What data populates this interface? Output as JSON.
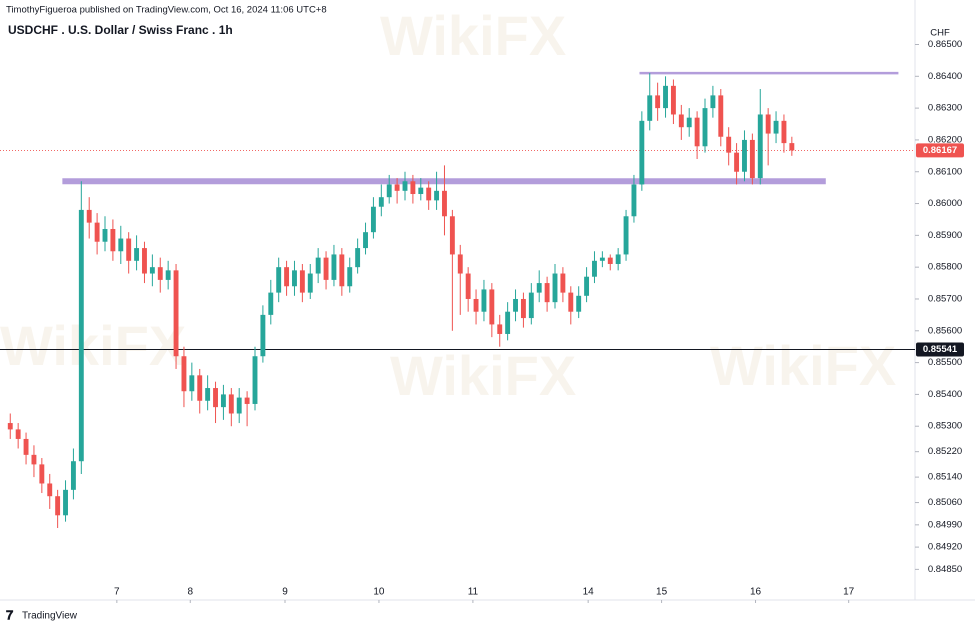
{
  "header": {
    "byline": "TimothyFigueroa published on TradingView.com, Oct 16, 2024 11:06 UTC+8",
    "footer": "TradingView",
    "watermark": "WikiFX"
  },
  "chart_data": {
    "type": "candlestick",
    "title": "USDCHF . U.S. Dollar / Swiss Franc . 1h",
    "y_unit": "CHF",
    "up_color": "#26a69a",
    "down_color": "#ef5350",
    "xlim": [
      -1.3,
      114.6
    ],
    "ylim": [
      0.8476,
      0.86577
    ],
    "xticks": [
      {
        "value": 13.5,
        "label": "7"
      },
      {
        "value": 22.8,
        "label": "8"
      },
      {
        "value": 34.8,
        "label": "9"
      },
      {
        "value": 46.7,
        "label": "10"
      },
      {
        "value": 58.6,
        "label": "11"
      },
      {
        "value": 73.2,
        "label": "14"
      },
      {
        "value": 82.5,
        "label": "15"
      },
      {
        "value": 94.4,
        "label": "16"
      },
      {
        "value": 106.2,
        "label": "17"
      }
    ],
    "yticks": [
      {
        "value": 0.865,
        "label": "0.86500"
      },
      {
        "value": 0.864,
        "label": "0.86400"
      },
      {
        "value": 0.863,
        "label": "0.86300"
      },
      {
        "value": 0.862,
        "label": "0.86200"
      },
      {
        "value": 0.861,
        "label": "0.86100"
      },
      {
        "value": 0.86,
        "label": "0.86000"
      },
      {
        "value": 0.859,
        "label": "0.85900"
      },
      {
        "value": 0.858,
        "label": "0.85800"
      },
      {
        "value": 0.857,
        "label": "0.85700"
      },
      {
        "value": 0.856,
        "label": "0.85600"
      },
      {
        "value": 0.855,
        "label": "0.85500"
      },
      {
        "value": 0.854,
        "label": "0.85400"
      },
      {
        "value": 0.853,
        "label": "0.85300"
      },
      {
        "value": 0.8522,
        "label": "0.85220"
      },
      {
        "value": 0.8514,
        "label": "0.85140"
      },
      {
        "value": 0.8506,
        "label": "0.85060"
      },
      {
        "value": 0.8499,
        "label": "0.84990"
      },
      {
        "value": 0.8492,
        "label": "0.84920"
      },
      {
        "value": 0.8485,
        "label": "0.84850"
      }
    ],
    "open": [
      0.8531,
      0.8529,
      0.8526,
      0.8521,
      0.8518,
      0.8512,
      0.8508,
      0.8502,
      0.851,
      0.8519,
      0.8598,
      0.8594,
      0.8588,
      0.8592,
      0.8585,
      0.8589,
      0.8582,
      0.8586,
      0.8578,
      0.858,
      0.8576,
      0.8579,
      0.8552,
      0.8541,
      0.8546,
      0.8538,
      0.8542,
      0.8536,
      0.854,
      0.8534,
      0.8539,
      0.8537,
      0.8552,
      0.8565,
      0.8572,
      0.858,
      0.8574,
      0.8579,
      0.8572,
      0.8578,
      0.8583,
      0.8576,
      0.8584,
      0.8574,
      0.858,
      0.8586,
      0.8591,
      0.8599,
      0.8602,
      0.8606,
      0.8604,
      0.8607,
      0.8603,
      0.8605,
      0.8601,
      0.8604,
      0.8596,
      0.8584,
      0.8578,
      0.857,
      0.8566,
      0.8573,
      0.8562,
      0.8559,
      0.8566,
      0.857,
      0.8564,
      0.8572,
      0.8575,
      0.8569,
      0.8578,
      0.8572,
      0.8566,
      0.8571,
      0.8577,
      0.8582,
      0.8583,
      0.8581,
      0.8584,
      0.8596,
      0.8606,
      0.8626,
      0.8634,
      0.863,
      0.8637,
      0.8628,
      0.8624,
      0.8627,
      0.8618,
      0.863,
      0.8634,
      0.8621,
      0.8616,
      0.861,
      0.862,
      0.8608,
      0.8628,
      0.8622,
      0.8626,
      0.8619
    ],
    "high": [
      0.8534,
      0.8531,
      0.8528,
      0.8524,
      0.852,
      0.8515,
      0.851,
      0.8513,
      0.8523,
      0.8607,
      0.8602,
      0.8597,
      0.8596,
      0.8595,
      0.8593,
      0.8591,
      0.859,
      0.8588,
      0.8584,
      0.8583,
      0.8582,
      0.8581,
      0.8555,
      0.855,
      0.8548,
      0.8546,
      0.8544,
      0.8543,
      0.8542,
      0.8542,
      0.8541,
      0.8555,
      0.8568,
      0.8576,
      0.8583,
      0.8582,
      0.8582,
      0.8581,
      0.8581,
      0.8586,
      0.8585,
      0.8587,
      0.8586,
      0.8583,
      0.8589,
      0.8594,
      0.8602,
      0.8606,
      0.8609,
      0.8608,
      0.861,
      0.8609,
      0.8608,
      0.8607,
      0.861,
      0.8612,
      0.8598,
      0.8587,
      0.858,
      0.8573,
      0.8576,
      0.8575,
      0.8565,
      0.8569,
      0.8573,
      0.8572,
      0.8575,
      0.8579,
      0.8577,
      0.8581,
      0.858,
      0.8574,
      0.8574,
      0.858,
      0.8585,
      0.8585,
      0.8584,
      0.8586,
      0.8598,
      0.8609,
      0.8629,
      0.8641,
      0.8638,
      0.864,
      0.8639,
      0.8631,
      0.863,
      0.8629,
      0.8633,
      0.8637,
      0.8636,
      0.8624,
      0.8619,
      0.8623,
      0.8622,
      0.8636,
      0.863,
      0.8629,
      0.8628,
      0.8621
    ],
    "low": [
      0.8526,
      0.8523,
      0.8518,
      0.8514,
      0.8509,
      0.8504,
      0.8498,
      0.85,
      0.8507,
      0.8515,
      0.8589,
      0.8584,
      0.8585,
      0.8582,
      0.8581,
      0.8578,
      0.8579,
      0.8575,
      0.8574,
      0.8572,
      0.8573,
      0.8548,
      0.8536,
      0.8538,
      0.8534,
      0.8535,
      0.8531,
      0.8532,
      0.853,
      0.8531,
      0.853,
      0.8535,
      0.855,
      0.8562,
      0.8569,
      0.8571,
      0.8571,
      0.8569,
      0.857,
      0.8575,
      0.8573,
      0.8574,
      0.8571,
      0.8572,
      0.8578,
      0.8584,
      0.8589,
      0.8596,
      0.86,
      0.86,
      0.8601,
      0.86,
      0.8601,
      0.8598,
      0.8598,
      0.859,
      0.856,
      0.8565,
      0.8566,
      0.8562,
      0.8563,
      0.8558,
      0.8555,
      0.8557,
      0.8563,
      0.8561,
      0.8562,
      0.8569,
      0.8566,
      0.8567,
      0.8569,
      0.8562,
      0.8564,
      0.8569,
      0.8575,
      0.858,
      0.8579,
      0.8579,
      0.8582,
      0.8594,
      0.8604,
      0.8623,
      0.8626,
      0.8627,
      0.8625,
      0.862,
      0.8621,
      0.8614,
      0.8616,
      0.8627,
      0.8618,
      0.8612,
      0.8606,
      0.8607,
      0.8606,
      0.8606,
      0.8612,
      0.8619,
      0.8616,
      0.8615
    ],
    "close": [
      0.8529,
      0.8526,
      0.8521,
      0.8518,
      0.8512,
      0.8508,
      0.8502,
      0.851,
      0.8519,
      0.8598,
      0.8594,
      0.8588,
      0.8592,
      0.8585,
      0.8589,
      0.8582,
      0.8586,
      0.8578,
      0.858,
      0.8576,
      0.8579,
      0.8552,
      0.8541,
      0.8546,
      0.8538,
      0.8542,
      0.8536,
      0.854,
      0.8534,
      0.8539,
      0.8537,
      0.8552,
      0.8565,
      0.8572,
      0.858,
      0.8574,
      0.8579,
      0.8572,
      0.8578,
      0.8583,
      0.8576,
      0.8584,
      0.8574,
      0.858,
      0.8586,
      0.8591,
      0.8599,
      0.8602,
      0.8606,
      0.8604,
      0.8607,
      0.8603,
      0.8605,
      0.8601,
      0.8604,
      0.8596,
      0.8584,
      0.8578,
      0.857,
      0.8566,
      0.8573,
      0.8562,
      0.8559,
      0.8566,
      0.857,
      0.8564,
      0.8572,
      0.8575,
      0.8569,
      0.8578,
      0.8572,
      0.8566,
      0.8571,
      0.8577,
      0.8582,
      0.8583,
      0.8581,
      0.8584,
      0.8596,
      0.8606,
      0.8626,
      0.8634,
      0.863,
      0.8637,
      0.8628,
      0.8624,
      0.8627,
      0.8618,
      0.863,
      0.8634,
      0.8621,
      0.8616,
      0.861,
      0.862,
      0.8608,
      0.8628,
      0.8622,
      0.8626,
      0.8619,
      0.86167
    ],
    "drawn_lines": [
      {
        "value": 0.8641,
        "start": 79.7,
        "end": 112.5,
        "color": "#b39ddb"
      },
      {
        "value": 0.8607,
        "start": 6.6,
        "end": 103.3,
        "color": "#b39ddb"
      }
    ],
    "price_lines": [
      {
        "value": 0.86167,
        "color": "#ef5350"
      },
      {
        "value": 0.85541,
        "color": "#131722"
      }
    ]
  }
}
